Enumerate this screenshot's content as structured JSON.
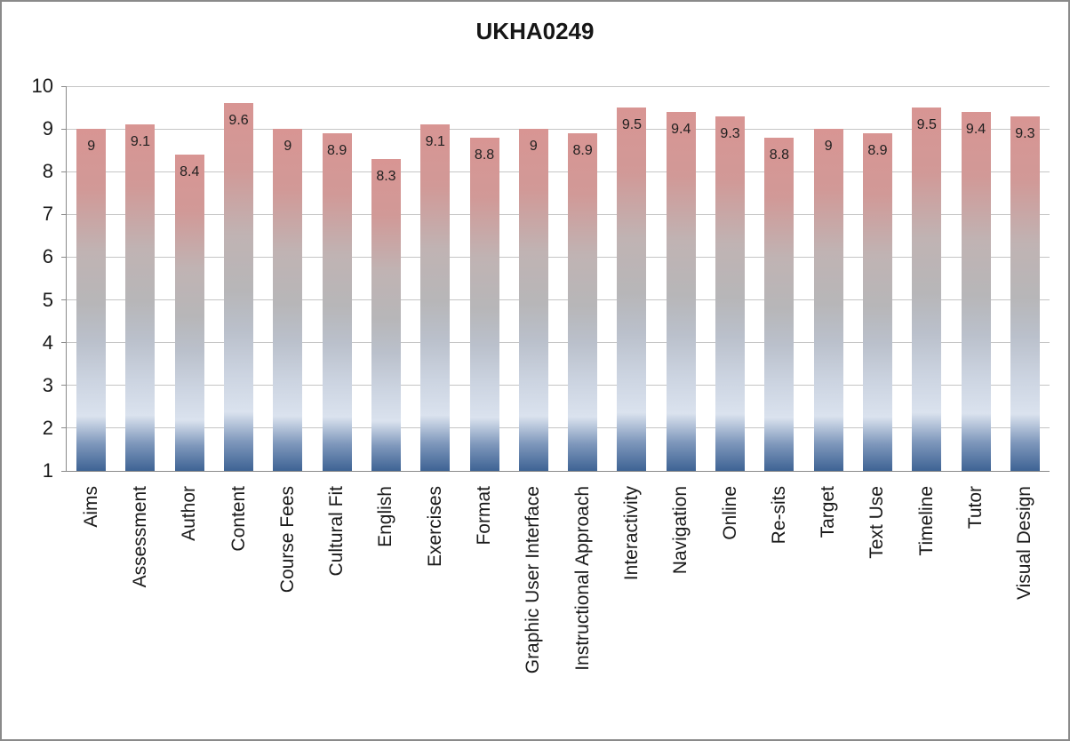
{
  "chart": {
    "colors": {
      "bar_top_pink": "#d89593",
      "bar_bottom_blue": "#3e6394",
      "gridline": "#c5c5c5",
      "axis": "#8a8a8a",
      "frame_border": "#8a8a8a",
      "title_color": "#161616"
    }
  },
  "chart_data": {
    "type": "bar",
    "title": "UKHA0249",
    "categories": [
      "Aims",
      "Assessment",
      "Author",
      "Content",
      "Course Fees",
      "Cultural Fit",
      "English",
      "Exercises",
      "Format",
      "Graphic User Interface",
      "Instructional Approach",
      "Interactivity",
      "Navigation",
      "Online",
      "Re-sits",
      "Target",
      "Text Use",
      "Timeline",
      "Tutor",
      "Visual Design"
    ],
    "values": [
      9,
      9.1,
      8.4,
      9.6,
      9,
      8.9,
      8.3,
      9.1,
      8.8,
      9,
      8.9,
      9.5,
      9.4,
      9.3,
      8.8,
      9,
      8.9,
      9.5,
      9.4,
      9.3
    ],
    "data_labels": [
      "9",
      "9.1",
      "8.4",
      "9.6",
      "9",
      "8.9",
      "8.3",
      "9.1",
      "8.8",
      "9",
      "8.9",
      "9.5",
      "9.4",
      "9.3",
      "8.8",
      "9",
      "8.9",
      "9.5",
      "9.4",
      "9.3"
    ],
    "data_label_position": "inside-end",
    "xlabel": "",
    "ylabel": "",
    "ylim": [
      1,
      10
    ],
    "yticks": [
      1,
      2,
      3,
      4,
      5,
      6,
      7,
      8,
      9,
      10
    ],
    "grid": true,
    "legend": false,
    "bar_gradient_top_to_bottom": [
      "#d89593",
      "#b7b6b8",
      "#dae2ee",
      "#3e6394"
    ]
  }
}
